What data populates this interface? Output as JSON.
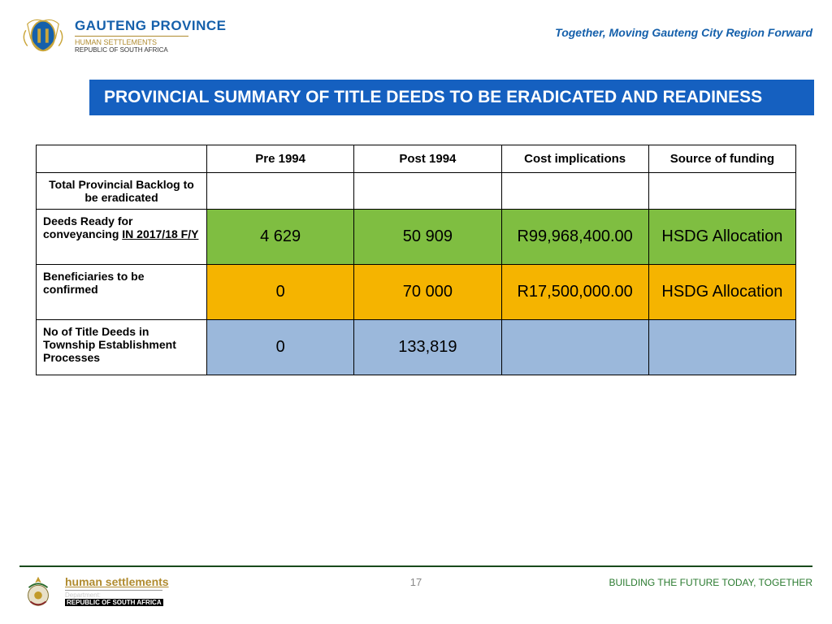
{
  "header": {
    "province_name": "GAUTENG PROVINCE",
    "province_sub": "HUMAN SETTLEMENTS",
    "province_sub2": "REPUBLIC OF SOUTH AFRICA",
    "tagline": "Together, Moving Gauteng City Region Forward"
  },
  "title": "PROVINCIAL SUMMARY OF TITLE DEEDS TO BE ERADICATED AND READINESS",
  "table": {
    "columns": [
      "",
      "Pre 1994",
      "Post 1994",
      "Cost implications",
      "Source of funding"
    ],
    "col_widths": [
      "210px",
      "auto",
      "auto",
      "auto",
      "auto"
    ],
    "rows": [
      {
        "label": "Total Provincial Backlog to be eradicated",
        "cells": [
          "",
          "",
          "",
          ""
        ],
        "bg": "#ffffff",
        "kind": "subhead"
      },
      {
        "label_html": "Deeds Ready for conveyancing <span class='under'>IN 2017/18 F/Y</span>",
        "cells": [
          "4 629",
          "50 909",
          "R99,968,400.00",
          "HSDG Allocation"
        ],
        "bg": "#7fbe41"
      },
      {
        "label": "Beneficiaries to be confirmed",
        "cells": [
          "0",
          "70 000",
          "R17,500,000.00",
          "HSDG Allocation"
        ],
        "bg": "#f5b400"
      },
      {
        "label": "No of Title Deeds in Township Establishment Processes",
        "cells": [
          "0",
          "133,819",
          "",
          ""
        ],
        "bg": "#9bb8db"
      }
    ],
    "border_color": "#000000",
    "header_bg": "#ffffff",
    "cell_fontsize": 20,
    "label_fontsize": 14
  },
  "footer": {
    "dept_name": "human settlements",
    "dept_sub": "Department:",
    "dept_sub_line2": "Human Settlements",
    "dept_sub2": "REPUBLIC OF SOUTH AFRICA",
    "right": "BUILDING THE FUTURE TODAY, TOGETHER",
    "page": "17"
  },
  "colors": {
    "title_bar_bg": "#1560c0",
    "title_bar_fg": "#ffffff",
    "province_blue": "#1560ab",
    "gold": "#b08b2f",
    "footer_green": "#2a7a2f",
    "rule_green": "#194a1c"
  }
}
